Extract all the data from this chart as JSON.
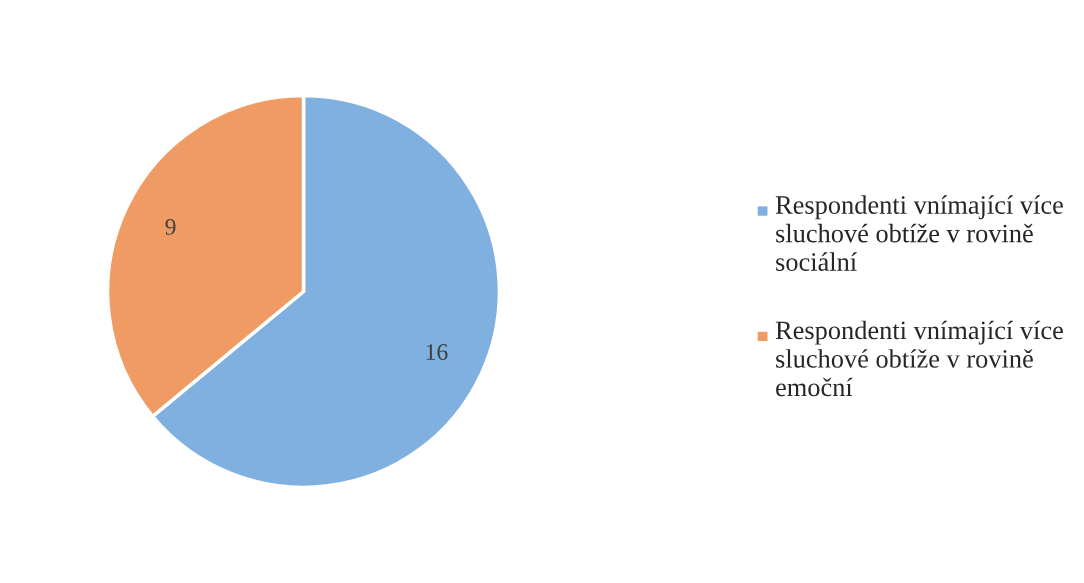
{
  "chart_data": {
    "type": "pie",
    "categories": [
      "Respondenti vnímající více sluchové obtíže v rovině sociální",
      "Respondenti vnímající více sluchové obtíže v rovině emoční"
    ],
    "values": [
      16,
      9
    ],
    "colors": [
      "#7fb0df",
      "#f09b64"
    ],
    "data_labels": true,
    "legend": "right"
  }
}
